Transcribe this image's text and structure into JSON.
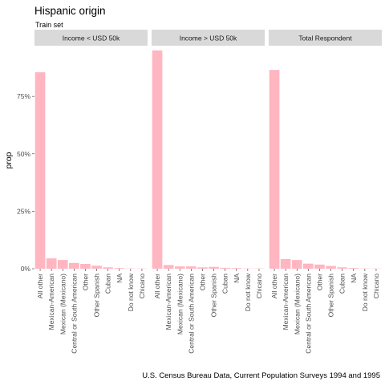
{
  "chart_data": {
    "type": "bar",
    "title": "Hispanic origin",
    "subtitle": "Train set",
    "ylabel": "prop",
    "caption": "U.S. Census Bureau Data, Current Population Surveys 1994 and 1995",
    "ylim": [
      0,
      0.96
    ],
    "yticks": [
      0,
      0.25,
      0.5,
      0.75
    ],
    "ytick_labels": [
      "0%",
      "25%",
      "50%",
      "75%"
    ],
    "grid": false,
    "bar_color": "#ffb6c1",
    "strip_color": "#d9d9d9",
    "categories": [
      "All other",
      "Mexican-American",
      "Mexican (Mexicano)",
      "Central or South American",
      "Other",
      "Other Spanish",
      "Cuban",
      "NA",
      "Do not know",
      "Chicano"
    ],
    "facets": [
      {
        "name": "Income < USD 50k",
        "values": [
          0.855,
          0.045,
          0.038,
          0.025,
          0.021,
          0.013,
          0.006,
          0.003,
          0.001,
          0.001
        ]
      },
      {
        "name": "Income > USD 50k",
        "values": [
          0.95,
          0.016,
          0.01,
          0.01,
          0.006,
          0.008,
          0.004,
          0.003,
          0.001,
          0.001
        ]
      },
      {
        "name": "Total Respondent",
        "values": [
          0.865,
          0.042,
          0.038,
          0.022,
          0.018,
          0.012,
          0.006,
          0.003,
          0.001,
          0.001
        ]
      }
    ]
  }
}
